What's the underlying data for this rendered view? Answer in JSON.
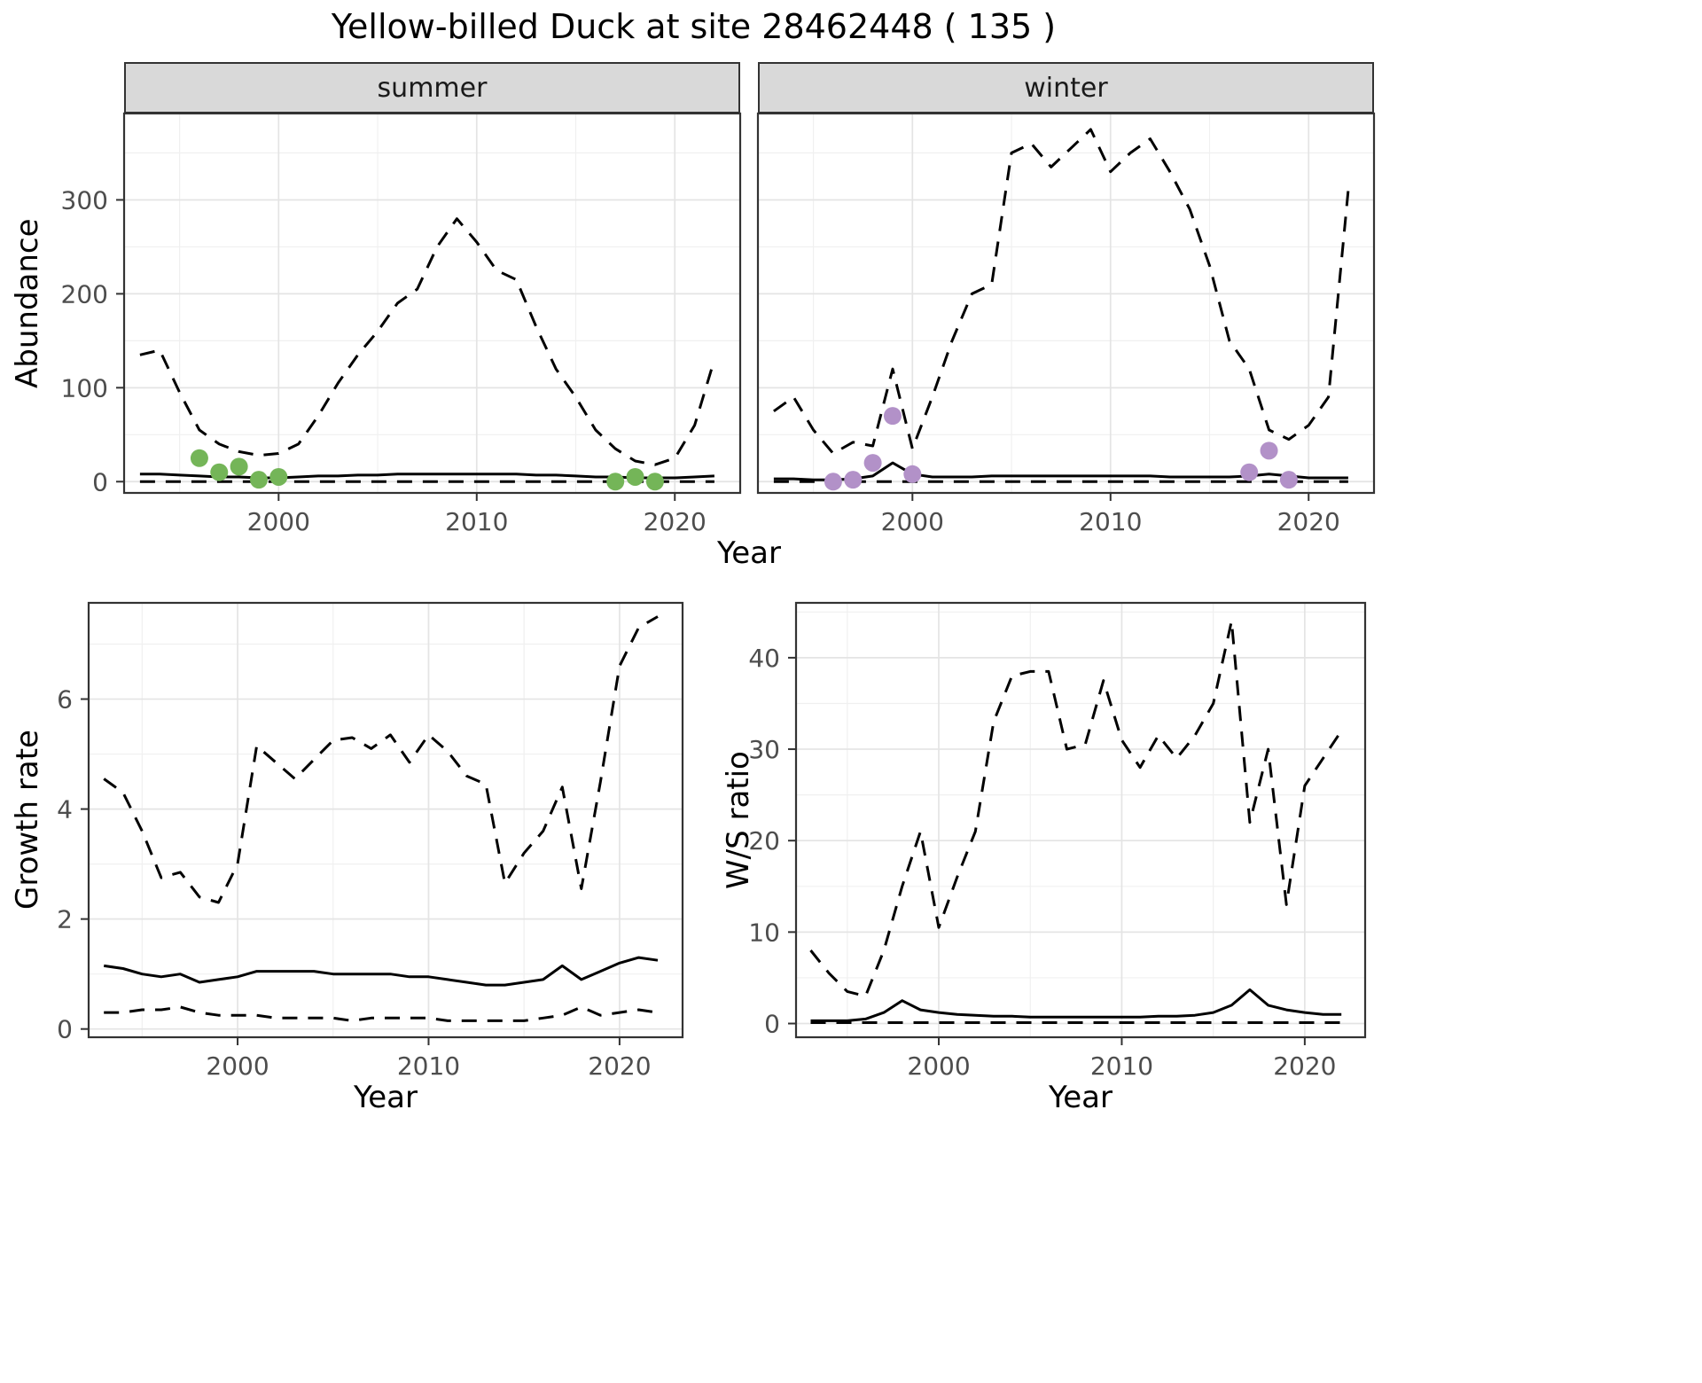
{
  "title": "Yellow-billed Duck at site 28462448 ( 135 )",
  "colors": {
    "summer_points": "#74b558",
    "winter_points": "#b291c8",
    "line": "#000000",
    "strip_bg": "#d9d9d9",
    "strip_text": "#1a1a1a",
    "grid_major": "#e4e4e4",
    "grid_minor": "#f0f0f0",
    "axis_text": "#4d4d4d",
    "panel_border": "#333333",
    "background": "#ffffff"
  },
  "chart_data": [
    {
      "id": "abundance",
      "type": "line",
      "xlabel": "Year",
      "ylabel": "Abundance",
      "facets": [
        "summer",
        "winter"
      ],
      "legend": "none",
      "grid": true,
      "x": [
        1993,
        1994,
        1995,
        1996,
        1997,
        1998,
        1999,
        2000,
        2001,
        2002,
        2003,
        2004,
        2005,
        2006,
        2007,
        2008,
        2009,
        2010,
        2011,
        2012,
        2013,
        2014,
        2015,
        2016,
        2017,
        2018,
        2019,
        2020,
        2021,
        2022
      ],
      "xlim": [
        1992.2,
        2023.3
      ],
      "ylim": [
        -12,
        392
      ],
      "xticks": [
        2000,
        2010,
        2020
      ],
      "yticks": [
        0,
        100,
        200,
        300
      ],
      "panels": [
        {
          "facet": "summer",
          "series": [
            {
              "name": "upper-ci",
              "style": "dashed",
              "values": [
                135,
                140,
                95,
                55,
                40,
                32,
                28,
                30,
                40,
                70,
                105,
                135,
                160,
                190,
                205,
                250,
                280,
                255,
                225,
                215,
                165,
                120,
                90,
                55,
                35,
                22,
                18,
                25,
                60,
                130
              ]
            },
            {
              "name": "median",
              "style": "solid",
              "values": [
                8,
                8,
                7,
                6,
                5,
                5,
                4,
                4,
                5,
                6,
                6,
                7,
                7,
                8,
                8,
                8,
                8,
                8,
                8,
                8,
                7,
                7,
                6,
                5,
                5,
                4,
                4,
                4,
                5,
                6
              ]
            },
            {
              "name": "lower-ci",
              "style": "dashed",
              "values": [
                0,
                0,
                0,
                0,
                0,
                0,
                0,
                0,
                0,
                0,
                0,
                0,
                0,
                0,
                0,
                0,
                0,
                0,
                0,
                0,
                0,
                0,
                0,
                0,
                0,
                0,
                0,
                0,
                0,
                0
              ]
            }
          ],
          "points": {
            "name": "observed-summer",
            "color_key": "summer_points",
            "x": [
              1996,
              1997,
              1998,
              1999,
              2000,
              2017,
              2018,
              2019
            ],
            "y": [
              25,
              10,
              16,
              2,
              5,
              0,
              5,
              0
            ]
          }
        },
        {
          "facet": "winter",
          "series": [
            {
              "name": "upper-ci",
              "style": "dashed",
              "values": [
                75,
                90,
                55,
                30,
                42,
                38,
                120,
                35,
                90,
                150,
                200,
                210,
                350,
                360,
                335,
                355,
                375,
                330,
                350,
                365,
                330,
                290,
                230,
                150,
                120,
                55,
                45,
                60,
                90,
                310
              ]
            },
            {
              "name": "median",
              "style": "solid",
              "values": [
                3,
                3,
                2,
                2,
                3,
                6,
                20,
                8,
                5,
                5,
                5,
                6,
                6,
                6,
                6,
                6,
                6,
                6,
                6,
                6,
                5,
                5,
                5,
                5,
                6,
                8,
                6,
                4,
                4,
                4
              ]
            },
            {
              "name": "lower-ci",
              "style": "dashed",
              "values": [
                0,
                0,
                0,
                0,
                0,
                0,
                0,
                0,
                0,
                0,
                0,
                0,
                0,
                0,
                0,
                0,
                0,
                0,
                0,
                0,
                0,
                0,
                0,
                0,
                0,
                0,
                0,
                0,
                0,
                0
              ]
            }
          ],
          "points": {
            "name": "observed-winter",
            "color_key": "winter_points",
            "x": [
              1996,
              1997,
              1998,
              1999,
              2000,
              2017,
              2018,
              2019
            ],
            "y": [
              0,
              2,
              20,
              70,
              8,
              10,
              33,
              2
            ]
          }
        }
      ]
    },
    {
      "id": "growth-rate",
      "type": "line",
      "xlabel": "Year",
      "ylabel": "Growth rate",
      "legend": "none",
      "grid": true,
      "x": [
        1993,
        1994,
        1995,
        1996,
        1997,
        1998,
        1999,
        2000,
        2001,
        2002,
        2003,
        2004,
        2005,
        2006,
        2007,
        2008,
        2009,
        2010,
        2011,
        2012,
        2013,
        2014,
        2015,
        2016,
        2017,
        2018,
        2019,
        2020,
        2021,
        2022
      ],
      "xlim": [
        1992.2,
        2023.3
      ],
      "ylim": [
        -0.15,
        7.75
      ],
      "xticks": [
        2000,
        2010,
        2020
      ],
      "yticks": [
        0,
        2,
        4,
        6
      ],
      "series": [
        {
          "name": "upper-ci",
          "style": "dashed",
          "values": [
            4.55,
            4.3,
            3.6,
            2.75,
            2.85,
            2.4,
            2.3,
            3.0,
            5.15,
            4.85,
            4.55,
            4.9,
            5.25,
            5.3,
            5.1,
            5.35,
            4.85,
            5.35,
            5.05,
            4.6,
            4.45,
            2.65,
            3.2,
            3.6,
            4.4,
            2.55,
            4.5,
            6.6,
            7.3,
            7.5
          ]
        },
        {
          "name": "median",
          "style": "solid",
          "values": [
            1.15,
            1.1,
            1.0,
            0.95,
            1.0,
            0.85,
            0.9,
            0.95,
            1.05,
            1.05,
            1.05,
            1.05,
            1.0,
            1.0,
            1.0,
            1.0,
            0.95,
            0.95,
            0.9,
            0.85,
            0.8,
            0.8,
            0.85,
            0.9,
            1.15,
            0.9,
            1.05,
            1.2,
            1.3,
            1.25
          ]
        },
        {
          "name": "lower-ci",
          "style": "dashed",
          "values": [
            0.3,
            0.3,
            0.35,
            0.35,
            0.4,
            0.3,
            0.25,
            0.25,
            0.25,
            0.2,
            0.2,
            0.2,
            0.2,
            0.15,
            0.2,
            0.2,
            0.2,
            0.2,
            0.15,
            0.15,
            0.15,
            0.15,
            0.15,
            0.2,
            0.25,
            0.4,
            0.25,
            0.3,
            0.35,
            0.3
          ]
        }
      ]
    },
    {
      "id": "ws-ratio",
      "type": "line",
      "xlabel": "Year",
      "ylabel": "W/S ratio",
      "legend": "none",
      "grid": true,
      "x": [
        1993,
        1994,
        1995,
        1996,
        1997,
        1998,
        1999,
        2000,
        2001,
        2002,
        2003,
        2004,
        2005,
        2006,
        2007,
        2008,
        2009,
        2010,
        2011,
        2012,
        2013,
        2014,
        2015,
        2016,
        2017,
        2018,
        2019,
        2020,
        2021,
        2022
      ],
      "xlim": [
        1992.2,
        2023.3
      ],
      "ylim": [
        -1.5,
        46
      ],
      "xticks": [
        2000,
        2010,
        2020
      ],
      "yticks": [
        0,
        10,
        20,
        30,
        40
      ],
      "series": [
        {
          "name": "upper-ci",
          "style": "dashed",
          "values": [
            8,
            5.5,
            3.5,
            3,
            8,
            15,
            21,
            10.5,
            16,
            21,
            33,
            38,
            38.5,
            38.5,
            30,
            30.5,
            37.5,
            31,
            28,
            31.5,
            29,
            31.5,
            35,
            44,
            22,
            30,
            13,
            26,
            29,
            32
          ]
        },
        {
          "name": "median",
          "style": "solid",
          "values": [
            0.3,
            0.3,
            0.3,
            0.5,
            1.2,
            2.5,
            1.5,
            1.2,
            1.0,
            0.9,
            0.8,
            0.8,
            0.7,
            0.7,
            0.7,
            0.7,
            0.7,
            0.7,
            0.7,
            0.8,
            0.8,
            0.9,
            1.2,
            2.0,
            3.7,
            2.0,
            1.5,
            1.2,
            1.0,
            1.0
          ]
        },
        {
          "name": "lower-ci",
          "style": "dashed",
          "values": [
            0.1,
            0.1,
            0.1,
            0.1,
            0.1,
            0.1,
            0.1,
            0.1,
            0.1,
            0.1,
            0.1,
            0.1,
            0.1,
            0.1,
            0.1,
            0.1,
            0.1,
            0.1,
            0.1,
            0.1,
            0.1,
            0.1,
            0.1,
            0.1,
            0.1,
            0.1,
            0.1,
            0.1,
            0.1,
            0.1
          ]
        }
      ]
    }
  ]
}
